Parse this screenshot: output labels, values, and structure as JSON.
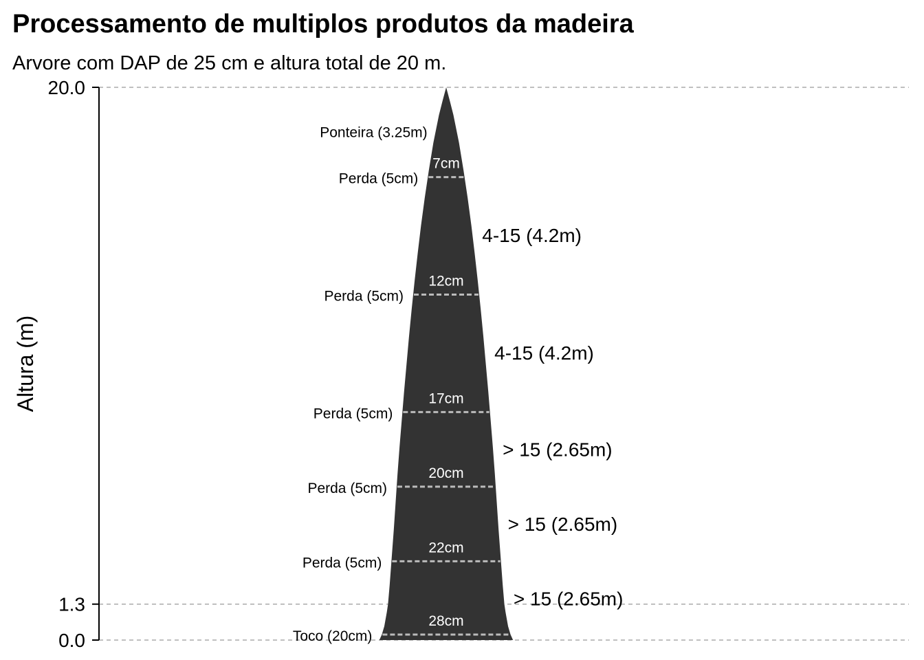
{
  "title": "Processamento de multiplos produtos da madeira",
  "subtitle": "Arvore com DAP de 25 cm e altura total de 20 m.",
  "chart_data": {
    "type": "area",
    "ylabel": "Altura (m)",
    "xlabel": "",
    "ylim": [
      0,
      20
    ],
    "y_ticks": [
      {
        "value": 0,
        "label": "0.0"
      },
      {
        "value": 1.3,
        "label": "1.3"
      },
      {
        "value": 20,
        "label": "20.0"
      }
    ],
    "guide_lines": [
      0,
      1.3,
      20
    ],
    "stem_color": "#333333",
    "cut_line_color": "#bbbbbb",
    "guide_color": "#aaaaaa",
    "stem_profile": {
      "heights": [
        0,
        0.2,
        0.5,
        1.0,
        1.3,
        2,
        3,
        4,
        5,
        6,
        7,
        8,
        9,
        10,
        11,
        12,
        13,
        14,
        15,
        16,
        17,
        18,
        19,
        19.5,
        20
      ],
      "diameters": [
        32.4,
        31.2,
        30.0,
        28.8,
        28.2,
        27.4,
        26.4,
        25.4,
        24.5,
        23.6,
        22.6,
        21.5,
        20.4,
        19.2,
        18.0,
        16.7,
        15.3,
        13.8,
        12.2,
        10.4,
        8.4,
        6.2,
        3.5,
        1.8,
        0
      ]
    },
    "cuts": [
      {
        "height": 0.2,
        "diameter_label": "28cm",
        "loss_label": "Toco (20cm)"
      },
      {
        "height": 2.85,
        "diameter_label": "22cm",
        "loss_label": "Perda (5cm)"
      },
      {
        "height": 5.55,
        "diameter_label": "20cm",
        "loss_label": "Perda (5cm)"
      },
      {
        "height": 8.25,
        "diameter_label": "17cm",
        "loss_label": "Perda (5cm)"
      },
      {
        "height": 12.5,
        "diameter_label": "12cm",
        "loss_label": "Perda (5cm)"
      },
      {
        "height": 16.75,
        "diameter_label": "7cm",
        "loss_label": "Perda (5cm)"
      }
    ],
    "products": [
      {
        "mid_height": 1.5,
        "label": "> 15 (2.65m)"
      },
      {
        "mid_height": 4.2,
        "label": "> 15 (2.65m)"
      },
      {
        "mid_height": 6.9,
        "label": "> 15 (2.65m)"
      },
      {
        "mid_height": 10.4,
        "label": "4-15 (4.2m)"
      },
      {
        "mid_height": 14.65,
        "label": "4-15 (4.2m)"
      }
    ],
    "top_piece": {
      "height": 18.4,
      "label": "Ponteira (3.25m)"
    }
  }
}
